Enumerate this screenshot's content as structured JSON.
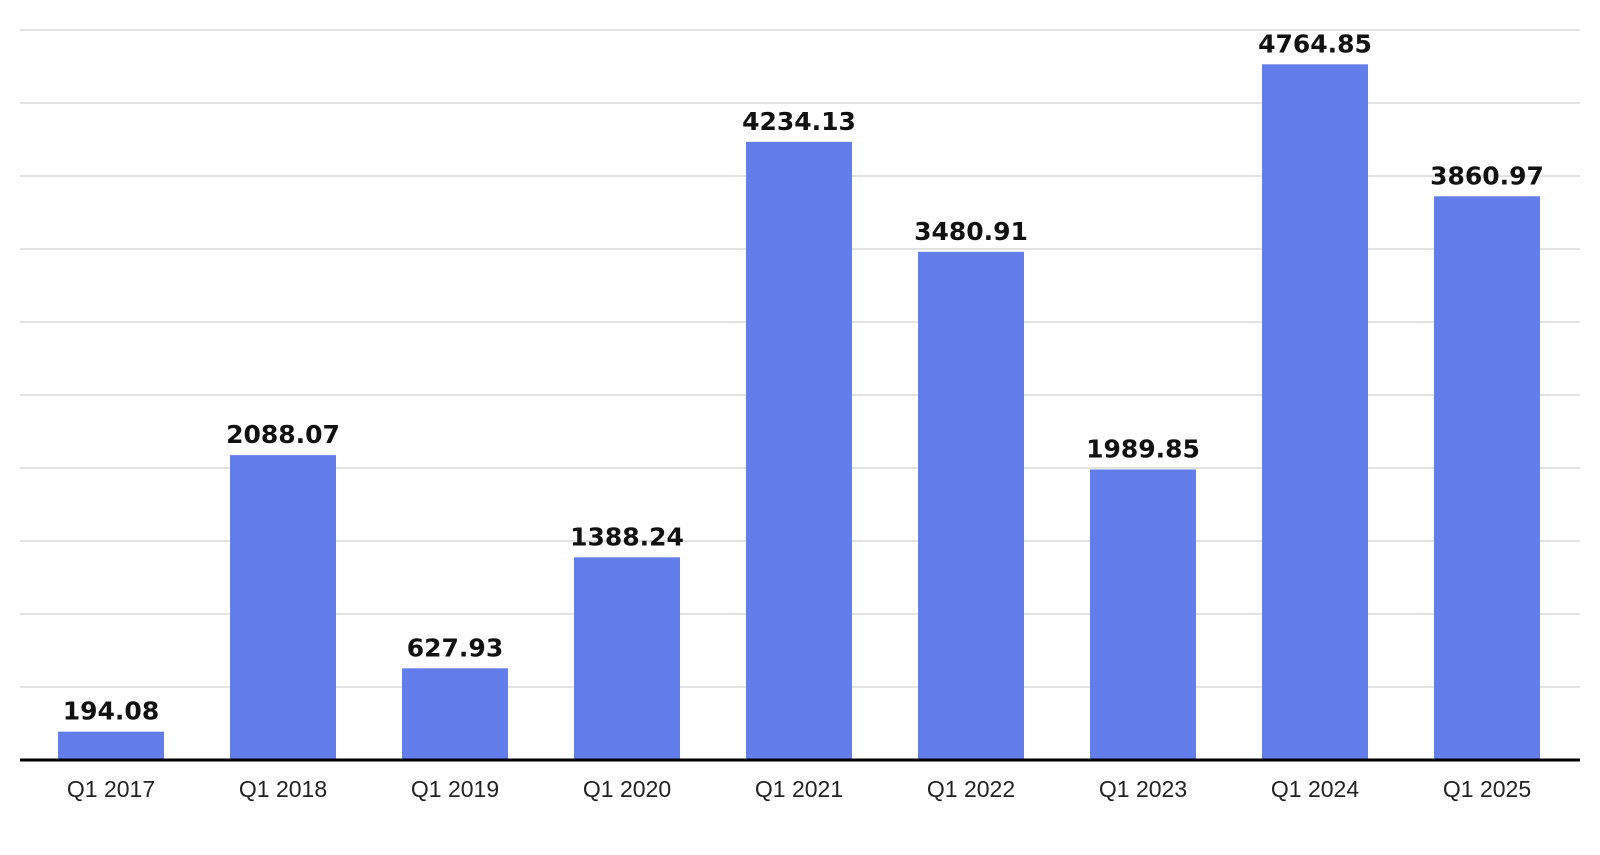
{
  "chart_data": {
    "type": "bar",
    "categories": [
      "Q1 2017",
      "Q1 2018",
      "Q1 2019",
      "Q1 2020",
      "Q1 2021",
      "Q1 2022",
      "Q1 2023",
      "Q1 2024",
      "Q1 2025"
    ],
    "values": [
      194.08,
      2088.07,
      627.93,
      1388.24,
      4234.13,
      3480.91,
      1989.85,
      4764.85,
      3860.97
    ],
    "data_labels": [
      "194.08",
      "2088.07",
      "627.93",
      "1388.24",
      "4234.13",
      "3480.91",
      "1989.85",
      "4764.85",
      "3860.97"
    ],
    "title": "",
    "xlabel": "",
    "ylabel": "",
    "ylim": [
      0,
      5000
    ],
    "grid": true,
    "legend": "none",
    "bar_color": "#637dea",
    "grid_color": "#e3e3e3",
    "baseline_color": "#000000"
  }
}
